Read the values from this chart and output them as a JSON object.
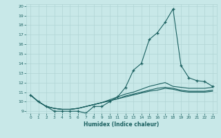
{
  "xlabel": "Humidex (Indice chaleur)",
  "bg_color": "#c8e8e8",
  "grid_color": "#b0d4d4",
  "line_color": "#1a6060",
  "xlim": [
    -0.5,
    23.5
  ],
  "ylim": [
    8.8,
    20.2
  ],
  "xticks": [
    0,
    1,
    2,
    3,
    4,
    5,
    6,
    7,
    8,
    9,
    10,
    11,
    12,
    13,
    14,
    15,
    16,
    17,
    18,
    19,
    20,
    21,
    22,
    23
  ],
  "yticks": [
    9,
    10,
    11,
    12,
    13,
    14,
    15,
    16,
    17,
    18,
    19,
    20
  ],
  "series": [
    {
      "x": [
        0,
        1,
        2,
        3,
        4,
        5,
        6,
        7,
        8,
        9,
        10,
        11,
        12,
        13,
        14,
        15,
        16,
        17,
        18,
        19,
        20,
        21,
        22,
        23
      ],
      "y": [
        10.7,
        10.0,
        9.5,
        9.0,
        9.0,
        9.0,
        9.0,
        8.8,
        9.5,
        9.5,
        10.0,
        10.5,
        11.5,
        13.3,
        14.0,
        16.5,
        17.2,
        18.3,
        19.7,
        13.8,
        12.5,
        12.2,
        12.1,
        11.6
      ],
      "marker": true
    },
    {
      "x": [
        0,
        1,
        2,
        3,
        4,
        5,
        6,
        7,
        8,
        9,
        10,
        11,
        12,
        13,
        14,
        15,
        16,
        17,
        18,
        19,
        20,
        21,
        22,
        23
      ],
      "y": [
        10.7,
        10.0,
        9.5,
        9.3,
        9.2,
        9.2,
        9.3,
        9.5,
        9.7,
        9.9,
        10.2,
        10.5,
        10.8,
        11.0,
        11.3,
        11.6,
        11.8,
        12.0,
        11.6,
        11.5,
        11.4,
        11.4,
        11.4,
        11.5
      ],
      "marker": false
    },
    {
      "x": [
        0,
        1,
        2,
        3,
        4,
        5,
        6,
        7,
        8,
        9,
        10,
        11,
        12,
        13,
        14,
        15,
        16,
        17,
        18,
        19,
        20,
        21,
        22,
        23
      ],
      "y": [
        10.7,
        10.0,
        9.5,
        9.3,
        9.2,
        9.2,
        9.3,
        9.5,
        9.7,
        9.9,
        10.1,
        10.3,
        10.6,
        10.8,
        11.0,
        11.2,
        11.4,
        11.5,
        11.4,
        11.2,
        11.1,
        11.1,
        11.1,
        11.2
      ],
      "marker": false
    },
    {
      "x": [
        0,
        1,
        2,
        3,
        4,
        5,
        6,
        7,
        8,
        9,
        10,
        11,
        12,
        13,
        14,
        15,
        16,
        17,
        18,
        19,
        20,
        21,
        22,
        23
      ],
      "y": [
        10.7,
        10.0,
        9.5,
        9.3,
        9.2,
        9.2,
        9.3,
        9.5,
        9.7,
        9.9,
        10.1,
        10.3,
        10.5,
        10.7,
        10.9,
        11.1,
        11.2,
        11.4,
        11.3,
        11.1,
        11.0,
        11.0,
        11.0,
        11.1
      ],
      "marker": false
    }
  ]
}
